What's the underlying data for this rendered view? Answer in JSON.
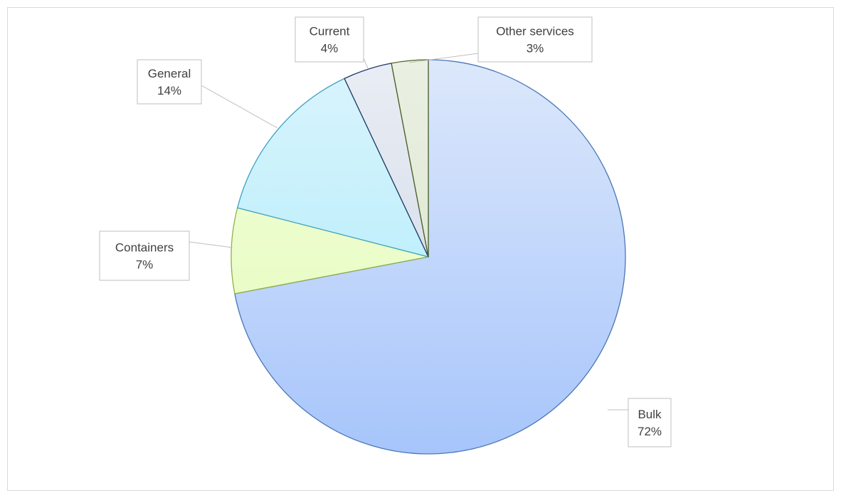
{
  "chart_data": {
    "type": "pie",
    "title": "",
    "start_angle_deg": 0,
    "direction": "clockwise",
    "slices": [
      {
        "label": "Bulk",
        "value": 72,
        "display": "72%",
        "fill_top": "#dce8fb",
        "fill_bottom": "#a7c5fb",
        "stroke": "#4a76b5"
      },
      {
        "label": "Containers",
        "value": 7,
        "display": "7%",
        "fill_top": "#f2ffdd",
        "fill_bottom": "#e4fbb6",
        "stroke": "#8fb048"
      },
      {
        "label": "General",
        "value": 14,
        "display": "14%",
        "fill_top": "#daf4fd",
        "fill_bottom": "#a6ebfb",
        "stroke": "#3ea1c0"
      },
      {
        "label": "Current",
        "value": 4,
        "display": "4%",
        "fill_top": "#e9edf4",
        "fill_bottom": "#cdd6e4",
        "stroke": "#1f3864"
      },
      {
        "label": "Other services",
        "value": 3,
        "display": "3%",
        "fill_top": "#eaf0e2",
        "fill_bottom": "#d7e3c8",
        "stroke": "#4f6228"
      }
    ]
  }
}
